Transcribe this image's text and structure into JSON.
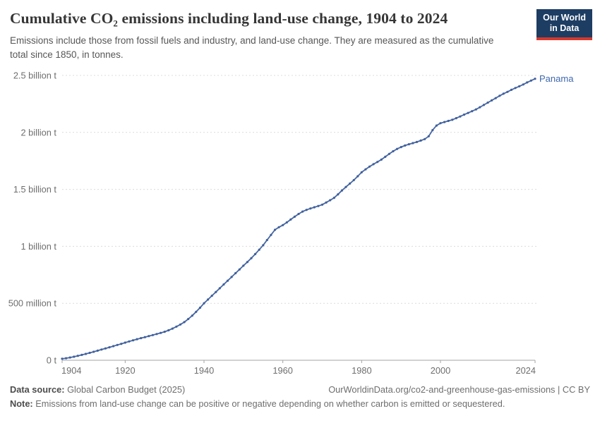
{
  "header": {
    "title": "Cumulative CO₂ emissions including land-use change, 1904 to 2024",
    "subtitle": "Emissions include those from fossil fuels and industry, and land-use change. They are measured as the cumulative total since 1850, in tonnes.",
    "logo": {
      "line1": "Our World",
      "line2": "in Data"
    }
  },
  "chart_data": {
    "type": "line",
    "title": "Cumulative CO₂ emissions including land-use change, 1904 to 2024",
    "entity_label": "Panama",
    "values_unit": "billion tonnes of CO₂",
    "xlim": [
      1904,
      2024
    ],
    "ylim": [
      0,
      2.5
    ],
    "grid": "dashed-horizontal",
    "legend_position": "end-of-line-label",
    "xticks": [
      1904,
      1920,
      1940,
      1960,
      1980,
      2000,
      2024
    ],
    "yticks": [
      {
        "v": 0,
        "label": "0 t"
      },
      {
        "v": 0.5,
        "label": "500 million t"
      },
      {
        "v": 1,
        "label": "1 billion t"
      },
      {
        "v": 1.5,
        "label": "1.5 billion t"
      },
      {
        "v": 2,
        "label": "2 billion t"
      },
      {
        "v": 2.5,
        "label": "2.5 billion t"
      }
    ],
    "x": [
      1904,
      1905,
      1906,
      1907,
      1908,
      1909,
      1910,
      1911,
      1912,
      1913,
      1914,
      1915,
      1916,
      1917,
      1918,
      1919,
      1920,
      1921,
      1922,
      1923,
      1924,
      1925,
      1926,
      1927,
      1928,
      1929,
      1930,
      1931,
      1932,
      1933,
      1934,
      1935,
      1936,
      1937,
      1938,
      1939,
      1940,
      1941,
      1942,
      1943,
      1944,
      1945,
      1946,
      1947,
      1948,
      1949,
      1950,
      1951,
      1952,
      1953,
      1954,
      1955,
      1956,
      1957,
      1958,
      1959,
      1960,
      1961,
      1962,
      1963,
      1964,
      1965,
      1966,
      1967,
      1968,
      1969,
      1970,
      1971,
      1972,
      1973,
      1974,
      1975,
      1976,
      1977,
      1978,
      1979,
      1980,
      1981,
      1982,
      1983,
      1984,
      1985,
      1986,
      1987,
      1988,
      1989,
      1990,
      1991,
      1992,
      1993,
      1994,
      1995,
      1996,
      1997,
      1998,
      1999,
      2000,
      2001,
      2002,
      2003,
      2004,
      2005,
      2006,
      2007,
      2008,
      2009,
      2010,
      2011,
      2012,
      2013,
      2014,
      2015,
      2016,
      2017,
      2018,
      2019,
      2020,
      2021,
      2022,
      2023,
      2024
    ],
    "series": [
      {
        "name": "Panama",
        "values": [
          0.013,
          0.018,
          0.024,
          0.031,
          0.039,
          0.047,
          0.056,
          0.065,
          0.074,
          0.084,
          0.094,
          0.104,
          0.114,
          0.124,
          0.134,
          0.144,
          0.155,
          0.165,
          0.175,
          0.185,
          0.194,
          0.203,
          0.212,
          0.221,
          0.23,
          0.24,
          0.25,
          0.263,
          0.278,
          0.295,
          0.314,
          0.335,
          0.362,
          0.392,
          0.425,
          0.461,
          0.5,
          0.533,
          0.566,
          0.599,
          0.632,
          0.665,
          0.698,
          0.731,
          0.764,
          0.797,
          0.83,
          0.862,
          0.896,
          0.932,
          0.97,
          1.01,
          1.055,
          1.1,
          1.145,
          1.168,
          1.186,
          1.21,
          1.235,
          1.26,
          1.284,
          1.305,
          1.32,
          1.332,
          1.343,
          1.354,
          1.366,
          1.385,
          1.405,
          1.426,
          1.456,
          1.49,
          1.521,
          1.551,
          1.581,
          1.615,
          1.65,
          1.676,
          1.7,
          1.721,
          1.741,
          1.761,
          1.786,
          1.811,
          1.835,
          1.855,
          1.871,
          1.885,
          1.896,
          1.906,
          1.916,
          1.928,
          1.941,
          1.966,
          2.02,
          2.06,
          2.081,
          2.091,
          2.101,
          2.111,
          2.125,
          2.14,
          2.156,
          2.171,
          2.186,
          2.202,
          2.221,
          2.241,
          2.261,
          2.281,
          2.301,
          2.321,
          2.34,
          2.356,
          2.374,
          2.39,
          2.405,
          2.421,
          2.439,
          2.455,
          2.471
        ]
      }
    ]
  },
  "footer": {
    "source_label": "Data source:",
    "source_text": " Global Carbon Budget (2025)",
    "link_text": "OurWorldinData.org/co2-and-greenhouse-gas-emissions | CC BY",
    "note_label": "Note:",
    "note_text": " Emissions from land-use change can be positive or negative depending on whether carbon is emitted or sequestered."
  },
  "colors": {
    "line": "#4666a4",
    "marker": "#40609c",
    "entity_label": "#3e68ad",
    "grid": "#dcdcdc",
    "axis": "#a3a3a3",
    "tick_text": "#6e6e6e",
    "logo_navy": "#1d3d63",
    "logo_red": "#d6382e"
  }
}
